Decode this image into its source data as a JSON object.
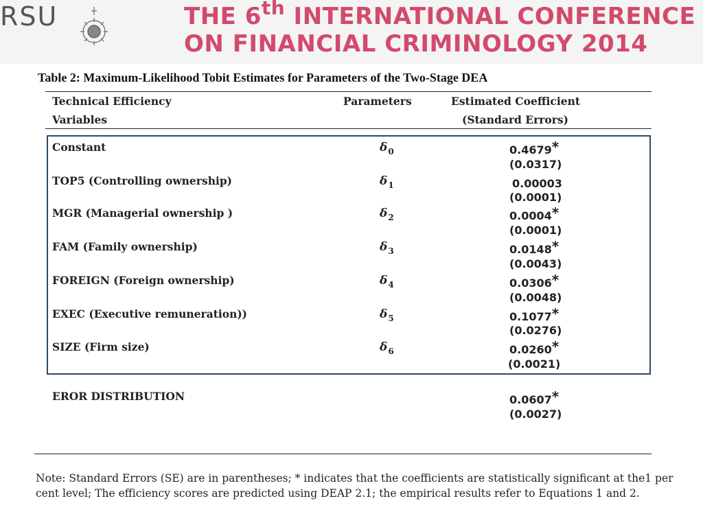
{
  "header": {
    "logo_text": "RSU",
    "title_line1_pre": "THE 6",
    "title_line1_sup": "th",
    "title_line1_post": " INTERNATIONAL CONFERENCE",
    "title_line2": "ON FINANCIAL CRIMINOLOGY 2014"
  },
  "caption": "Table 2: Maximum-Likelihood Tobit Estimates for Parameters of the Two-Stage DEA",
  "table": {
    "headers": {
      "col1_line1": "Technical Efficiency",
      "col1_line2": "Variables",
      "col2": "Parameters",
      "col3_line1": "Estimated Coefficient",
      "col3_line2": "(Standard Errors)"
    },
    "rows": [
      {
        "variable": "Constant",
        "param": "δ",
        "param_sub": "0",
        "coef": "0.4679",
        "star": "*",
        "se": "(0.0317)"
      },
      {
        "variable": "TOP5 (Controlling ownership)",
        "param": "δ",
        "param_sub": "1",
        "coef": "0.00003",
        "star": "",
        "se": "(0.0001)"
      },
      {
        "variable": "MGR (Managerial ownership )",
        "param": "δ",
        "param_sub": "2",
        "coef": "0.0004",
        "star": "*",
        "se": "(0.0001)"
      },
      {
        "variable": "FAM (Family ownership)",
        "param": "δ",
        "param_sub": "3",
        "coef": "0.0148",
        "star": "*",
        "se": "(0.0043)"
      },
      {
        "variable": "FOREIGN (Foreign ownership)",
        "param": "δ",
        "param_sub": "4",
        "coef": "0.0306",
        "star": "*",
        "se": "(0.0048)"
      },
      {
        "variable": "EXEC (Executive remuneration))",
        "param": "δ",
        "param_sub": "5",
        "coef": "0.1077",
        "star": "*",
        "se": "(0.0276)"
      },
      {
        "variable": "SIZE (Firm size)",
        "param": "δ",
        "param_sub": "6",
        "coef": "0.0260",
        "star": "*",
        "se": "(0.0021)"
      }
    ],
    "error_row": {
      "variable": "EROR DISTRIBUTION",
      "coef": "0.0607",
      "star": "*",
      "se": "(0.0027)"
    }
  },
  "note": "Note: Standard Errors (SE) are in parentheses; * indicates that the coefficients are statistically significant at the1 per cent level; The efficiency scores are predicted using DEAP 2.1; the empirical results refer to Equations 1 and 2.",
  "colors": {
    "banner_title": "#d24a6c",
    "box_border": "#2c4a6a",
    "logo": "#555555"
  }
}
